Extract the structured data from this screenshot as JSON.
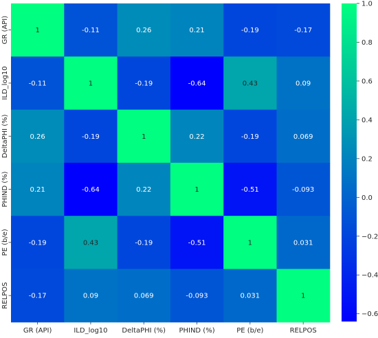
{
  "chart_data": {
    "type": "heatmap",
    "title": "",
    "xlabel": "",
    "ylabel": "",
    "x_labels": [
      "GR (API)",
      "ILD_log10",
      "DeltaPHI (%)",
      "PHIND (%)",
      "PE (b/e)",
      "RELPOS"
    ],
    "y_labels": [
      "GR (API)",
      "ILD_log10",
      "DeltaPHI (%)",
      "PHIND (%)",
      "PE (b/e)",
      "RELPOS"
    ],
    "values": [
      [
        1,
        -0.11,
        0.26,
        0.21,
        -0.19,
        -0.17
      ],
      [
        -0.11,
        1,
        -0.19,
        -0.64,
        0.43,
        0.09
      ],
      [
        0.26,
        -0.19,
        1,
        0.22,
        -0.19,
        0.069
      ],
      [
        0.21,
        -0.64,
        0.22,
        1,
        -0.51,
        -0.093
      ],
      [
        -0.19,
        0.43,
        -0.19,
        -0.51,
        1,
        0.031
      ],
      [
        -0.17,
        0.09,
        0.069,
        -0.093,
        0.031,
        1
      ]
    ],
    "cell_labels": [
      [
        "1",
        "-0.11",
        "0.26",
        "0.21",
        "-0.19",
        "-0.17"
      ],
      [
        "-0.11",
        "1",
        "-0.19",
        "-0.64",
        "0.43",
        "0.09"
      ],
      [
        "0.26",
        "-0.19",
        "1",
        "0.22",
        "-0.19",
        "0.069"
      ],
      [
        "0.21",
        "-0.64",
        "0.22",
        "1",
        "-0.51",
        "-0.093"
      ],
      [
        "-0.19",
        "0.43",
        "-0.19",
        "-0.51",
        "1",
        "0.031"
      ],
      [
        "-0.17",
        "0.09",
        "0.069",
        "-0.093",
        "0.031",
        "1"
      ]
    ],
    "colormap": "winter",
    "color_low": "#0000ff",
    "color_high": "#00ff80",
    "vmin": -0.64,
    "vmax": 1,
    "colorbar_ticks": [
      "1.0",
      "0.8",
      "0.6",
      "0.4",
      "0.2",
      "0.0",
      "−0.2",
      "−0.4",
      "−0.6"
    ],
    "colorbar_tick_values": [
      1.0,
      0.8,
      0.6,
      0.4,
      0.2,
      0.0,
      -0.2,
      -0.4,
      -0.6
    ]
  }
}
